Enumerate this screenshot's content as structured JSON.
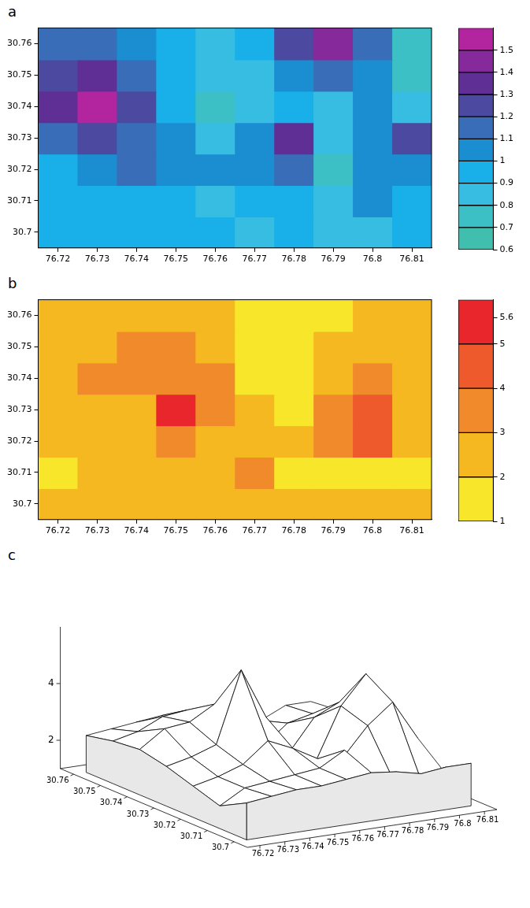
{
  "chart_data": [
    {
      "type": "heatmap",
      "panel": "a",
      "x": [
        76.72,
        76.73,
        76.74,
        76.75,
        76.76,
        76.77,
        76.78,
        76.79,
        76.8,
        76.81
      ],
      "y": [
        30.7,
        30.71,
        30.72,
        30.73,
        30.74,
        30.75,
        30.76
      ],
      "values": [
        [
          0.9,
          0.9,
          0.9,
          0.9,
          0.9,
          0.88,
          0.9,
          0.8,
          0.85,
          0.9
        ],
        [
          0.9,
          0.9,
          0.95,
          0.9,
          0.85,
          0.9,
          0.95,
          0.8,
          1.0,
          0.95
        ],
        [
          0.95,
          1.05,
          1.1,
          1.05,
          1.0,
          1.05,
          1.1,
          0.72,
          1.05,
          1.0
        ],
        [
          1.15,
          1.2,
          1.15,
          1.0,
          0.85,
          1.05,
          1.3,
          0.85,
          1.0,
          1.2
        ],
        [
          1.3,
          1.5,
          1.25,
          0.95,
          0.72,
          0.85,
          0.95,
          0.85,
          1.05,
          0.85
        ],
        [
          1.25,
          1.3,
          1.15,
          0.95,
          0.85,
          0.88,
          1.05,
          1.15,
          1.05,
          0.75
        ],
        [
          1.15,
          1.15,
          1.05,
          0.9,
          0.85,
          0.9,
          1.2,
          1.45,
          1.1,
          0.75
        ]
      ],
      "xlim": [
        76.715,
        76.815
      ],
      "ylim": [
        30.695,
        30.765
      ],
      "xticks": [
        76.72,
        76.73,
        76.74,
        76.75,
        76.76,
        76.77,
        76.78,
        76.79,
        76.8,
        76.81
      ],
      "yticks": [
        30.7,
        30.71,
        30.72,
        30.73,
        30.74,
        30.75,
        30.76
      ],
      "grid": false,
      "colorbar": {
        "levels": [
          0.6,
          0.7,
          0.8,
          0.9,
          1.0,
          1.1,
          1.2,
          1.3,
          1.4,
          1.5,
          1.6
        ],
        "ticks": [
          0.6,
          0.7,
          0.8,
          0.9,
          1,
          1.1,
          1.2,
          1.3,
          1.4,
          1.5
        ],
        "colors": [
          "#40bfae",
          "#3cc0c6",
          "#38bde2",
          "#19b0ea",
          "#1a8ed0",
          "#3a6db7",
          "#4b4aa0",
          "#5f2f95",
          "#86299a",
          "#b2259e"
        ]
      }
    },
    {
      "type": "heatmap",
      "panel": "b",
      "x": [
        76.72,
        76.73,
        76.74,
        76.75,
        76.76,
        76.77,
        76.78,
        76.79,
        76.8,
        76.81
      ],
      "y": [
        30.7,
        30.71,
        30.72,
        30.73,
        30.74,
        30.75,
        30.76
      ],
      "values": [
        [
          2.3,
          2.4,
          2.5,
          2.5,
          2.6,
          2.7,
          2.6,
          2.4,
          2.5,
          2.5
        ],
        [
          1.8,
          2.3,
          2.4,
          2.5,
          2.6,
          3.1,
          1.9,
          1.7,
          1.8,
          1.8
        ],
        [
          2.1,
          2.3,
          2.6,
          3.3,
          2.9,
          2.4,
          2.3,
          3.3,
          4.0,
          2.6
        ],
        [
          2.4,
          2.6,
          2.9,
          5.4,
          3.6,
          2.2,
          1.8,
          3.6,
          4.6,
          2.8
        ],
        [
          2.6,
          3.2,
          3.3,
          3.8,
          3.3,
          1.8,
          1.7,
          2.8,
          3.2,
          2.6
        ],
        [
          2.5,
          2.7,
          3.1,
          3.2,
          2.6,
          1.6,
          1.5,
          2.2,
          2.4,
          2.4
        ],
        [
          2.3,
          2.4,
          2.5,
          2.6,
          2.5,
          1.8,
          1.7,
          1.9,
          2.3,
          2.3
        ]
      ],
      "xlim": [
        76.715,
        76.815
      ],
      "ylim": [
        30.695,
        30.765
      ],
      "xticks": [
        76.72,
        76.73,
        76.74,
        76.75,
        76.76,
        76.77,
        76.78,
        76.79,
        76.8,
        76.81
      ],
      "yticks": [
        30.7,
        30.71,
        30.72,
        30.73,
        30.74,
        30.75,
        30.76
      ],
      "grid": false,
      "colorbar": {
        "levels": [
          1,
          2,
          3,
          4,
          5,
          6
        ],
        "ticks": [
          1,
          2,
          3,
          4,
          5,
          5.6
        ],
        "colors": [
          "#f7e62a",
          "#f5b821",
          "#f08a2b",
          "#ee5a2b",
          "#e8262b"
        ]
      }
    },
    {
      "type": "surface",
      "panel": "c",
      "x": [
        76.72,
        76.73,
        76.74,
        76.75,
        76.76,
        76.77,
        76.78,
        76.79,
        76.8,
        76.81
      ],
      "y": [
        30.7,
        30.71,
        30.72,
        30.73,
        30.74,
        30.75,
        30.76
      ],
      "values": [
        [
          2.3,
          2.4,
          2.5,
          2.5,
          2.6,
          2.7,
          2.6,
          2.4,
          2.5,
          2.5
        ],
        [
          1.8,
          2.3,
          2.4,
          2.5,
          2.6,
          3.1,
          1.9,
          1.7,
          1.8,
          1.8
        ],
        [
          2.1,
          2.3,
          2.6,
          3.3,
          2.9,
          2.4,
          2.3,
          3.3,
          4.0,
          2.6
        ],
        [
          2.4,
          2.6,
          2.9,
          5.4,
          3.6,
          2.2,
          1.8,
          3.6,
          4.6,
          2.8
        ],
        [
          2.6,
          3.2,
          3.3,
          3.8,
          3.3,
          1.8,
          1.7,
          2.8,
          3.2,
          2.6
        ],
        [
          2.5,
          2.7,
          3.1,
          3.2,
          2.6,
          1.6,
          1.5,
          2.2,
          2.4,
          2.4
        ],
        [
          2.3,
          2.4,
          2.5,
          2.6,
          2.5,
          1.8,
          1.7,
          1.9,
          2.3,
          2.3
        ]
      ],
      "xlim": [
        76.715,
        76.815
      ],
      "ylim": [
        30.695,
        30.765
      ],
      "zlim": [
        1,
        6
      ],
      "xticks": [
        76.72,
        76.73,
        76.74,
        76.75,
        76.76,
        76.77,
        76.78,
        76.79,
        76.8,
        76.81
      ],
      "yticks": [
        30.7,
        30.71,
        30.72,
        30.73,
        30.74,
        30.75,
        30.76
      ],
      "zticks": [
        2,
        4
      ]
    }
  ]
}
